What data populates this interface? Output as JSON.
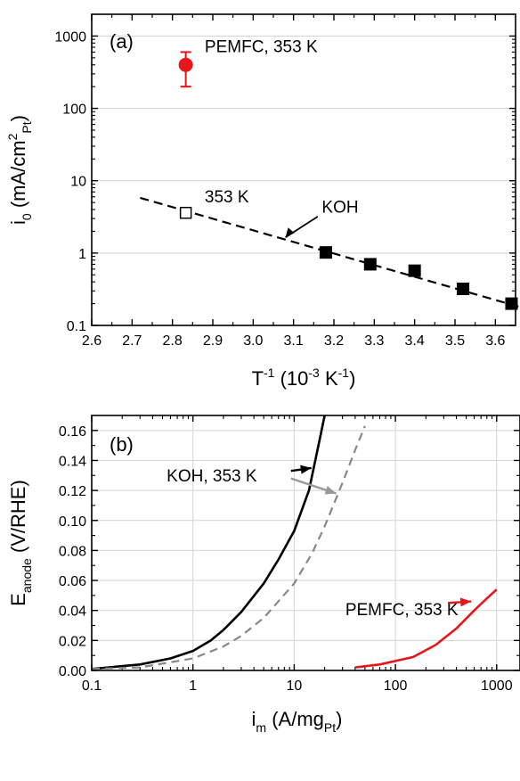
{
  "chart_data": [
    {
      "type": "scatter",
      "panel_label": "(a)",
      "xlabel": {
        "base": "T",
        "sup1": "-1",
        "rest": " (10",
        "sup2": "-3",
        "rest2": " K",
        "sup3": "-1",
        "close": ")"
      },
      "ylabel": {
        "base": "i",
        "sub1": "0",
        "rest": " (mA/cm",
        "sup": "2",
        "sub2": "Pt",
        "close": ")"
      },
      "x_scale": "linear",
      "y_scale": "log",
      "xlim": [
        2.6,
        3.65
      ],
      "ylim": [
        0.1,
        2000
      ],
      "x_ticks": [
        2.6,
        2.7,
        2.8,
        2.9,
        3.0,
        3.1,
        3.2,
        3.3,
        3.4,
        3.5,
        3.6
      ],
      "x_tick_labels": [
        "2.6",
        "2.7",
        "2.8",
        "2.9",
        "3.0",
        "3.1",
        "3.2",
        "3.3",
        "3.4",
        "3.5",
        "3.6"
      ],
      "y_ticks": [
        0.1,
        1,
        10,
        100,
        1000
      ],
      "y_tick_labels": [
        "0.1",
        "1",
        "10",
        "100",
        "1000"
      ],
      "grid": true,
      "series": [
        {
          "kind": "pemfc-point",
          "color": "#e8151b",
          "x": [
            2.833
          ],
          "y": [
            400
          ],
          "y_err_low": [
            200
          ],
          "y_err_high": [
            600
          ]
        },
        {
          "kind": "koh-filled",
          "color": "#000000",
          "x": [
            3.18,
            3.29,
            3.4,
            3.52,
            3.64
          ],
          "y": [
            1.02,
            0.7,
            0.57,
            0.32,
            0.2
          ]
        },
        {
          "kind": "koh-open-extrapolated",
          "color": "#000000",
          "x": [
            2.833
          ],
          "y": [
            3.6
          ]
        },
        {
          "kind": "koh-fit-line",
          "color": "#000000",
          "x": [
            2.72,
            3.66
          ],
          "y": [
            5.8,
            0.18
          ]
        }
      ],
      "annotations": [
        {
          "text": "PEMFC, 353 K",
          "x": 2.88,
          "y": 600
        },
        {
          "text": "353 K",
          "x": 2.88,
          "y": 5.0
        },
        {
          "text": "KOH",
          "x": 3.17,
          "y": 3.6
        }
      ]
    },
    {
      "type": "line",
      "panel_label": "(b)",
      "xlabel": {
        "base": "i",
        "sub1": "m",
        "rest": " (A/mg",
        "sub2": "Pt",
        "close": ")"
      },
      "ylabel": {
        "base": "E",
        "sub": "anode",
        "rest": " (V/RHE)"
      },
      "x_scale": "log",
      "y_scale": "linear",
      "xlim": [
        0.1,
        1700
      ],
      "ylim": [
        0,
        0.17
      ],
      "x_ticks": [
        0.1,
        1,
        10,
        100,
        1000
      ],
      "x_tick_labels": [
        "0.1",
        "1",
        "10",
        "100",
        "1000"
      ],
      "y_ticks": [
        0.0,
        0.02,
        0.04,
        0.06,
        0.08,
        0.1,
        0.12,
        0.14,
        0.16
      ],
      "y_tick_labels": [
        "0.00",
        "0.02",
        "0.04",
        "0.06",
        "0.08",
        "0.10",
        "0.12",
        "0.14",
        "0.16"
      ],
      "grid": true,
      "series": [
        {
          "kind": "koh-solid",
          "color": "#000000",
          "x": [
            0.1,
            0.3,
            0.6,
            1,
            1.5,
            2,
            3,
            5,
            7,
            10,
            14,
            18,
            20
          ],
          "y": [
            0.001,
            0.004,
            0.008,
            0.013,
            0.02,
            0.027,
            0.039,
            0.058,
            0.074,
            0.093,
            0.12,
            0.155,
            0.17
          ]
        },
        {
          "kind": "koh-dashed",
          "color": "#888888",
          "x": [
            0.1,
            0.3,
            1,
            2,
            3,
            5,
            10,
            15,
            20,
            30,
            40,
            50
          ],
          "y": [
            0.001,
            0.002,
            0.008,
            0.016,
            0.023,
            0.035,
            0.058,
            0.078,
            0.096,
            0.125,
            0.147,
            0.163
          ]
        },
        {
          "kind": "pemfc-solid",
          "color": "#e8151b",
          "x": [
            40,
            70,
            150,
            250,
            400,
            600,
            800,
            1000
          ],
          "y": [
            0.002,
            0.004,
            0.009,
            0.017,
            0.028,
            0.04,
            0.048,
            0.054
          ]
        }
      ],
      "annotations": [
        {
          "text": "KOH, 353 K",
          "x": 0.55,
          "y": 0.126,
          "color": "#000000"
        },
        {
          "text": "PEMFC, 353 K",
          "x": 32,
          "y": 0.037,
          "color": "#e8151b"
        }
      ]
    }
  ]
}
